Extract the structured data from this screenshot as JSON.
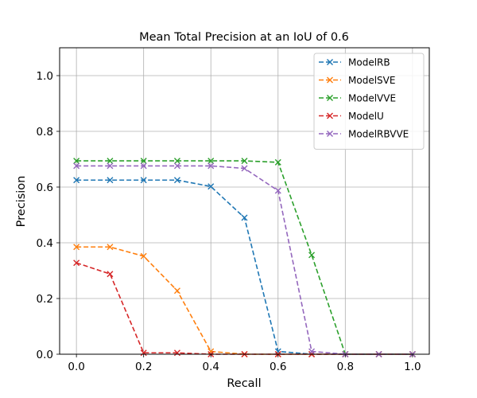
{
  "chart_data": {
    "type": "line",
    "title": "Mean Total Precision at an IoU of 0.6",
    "xlabel": "Recall",
    "ylabel": "Precision",
    "xlim": [
      -0.05,
      1.05
    ],
    "ylim": [
      0,
      1.1
    ],
    "xticks": [
      "0.0",
      "0.2",
      "0.4",
      "0.6",
      "0.8",
      "1.0"
    ],
    "yticks": [
      "0.0",
      "0.2",
      "0.4",
      "0.6",
      "0.8",
      "1.0"
    ],
    "grid": true,
    "legend_position": "top-right",
    "x": [
      0.0,
      0.1,
      0.2,
      0.3,
      0.4,
      0.5,
      0.6,
      0.7,
      0.8,
      0.9,
      1.0
    ],
    "series": [
      {
        "name": "ModelRB",
        "color": "#1f77b4",
        "values": [
          0.625,
          0.625,
          0.625,
          0.625,
          0.602,
          0.49,
          0.01,
          0.0,
          0.0,
          0.0,
          0.0
        ]
      },
      {
        "name": "ModelSVE",
        "color": "#ff7f0e",
        "values": [
          0.385,
          0.385,
          0.352,
          0.228,
          0.01,
          0.0,
          0.0,
          0.0,
          0.0,
          0.0,
          0.0
        ]
      },
      {
        "name": "ModelVVE",
        "color": "#2ca02c",
        "values": [
          0.694,
          0.694,
          0.694,
          0.694,
          0.694,
          0.694,
          0.689,
          0.356,
          0.0,
          0.0,
          0.0
        ]
      },
      {
        "name": "ModelU",
        "color": "#d62728",
        "values": [
          0.328,
          0.288,
          0.005,
          0.005,
          0.0,
          0.0,
          0.0,
          0.0,
          0.0,
          0.0,
          0.0
        ]
      },
      {
        "name": "ModelRBVVE",
        "color": "#9467bd",
        "values": [
          0.676,
          0.676,
          0.676,
          0.676,
          0.676,
          0.667,
          0.587,
          0.01,
          0.0,
          0.0,
          0.0
        ]
      }
    ]
  }
}
